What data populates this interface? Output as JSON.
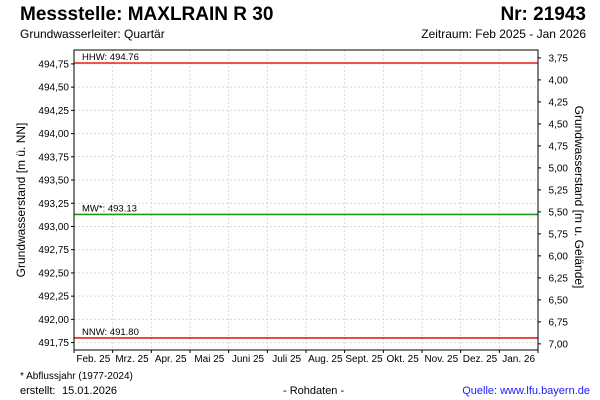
{
  "header": {
    "title": "Messstelle: MAXLRAIN R 30",
    "number": "Nr: 21943",
    "aquifer": "Grundwasserleiter: Quartär",
    "period": "Zeitraum: Feb 2025 - Jan 2026"
  },
  "footer": {
    "footnote": "* Abflussjahr (1977-2024)",
    "created_label": "erstellt:",
    "created_date": "15.01.2026",
    "raw": "- Rohdaten -",
    "source": "Quelle: www.lfu.bayern.de"
  },
  "chart_data": {
    "type": "line",
    "ylabel": "Grundwasserstand [m ü. NN]",
    "ylabel_right": "Grundwasserstand [m u. Gelände]",
    "x_ticks": [
      "Feb. 25",
      "Mrz. 25",
      "Apr. 25",
      "Mai 25",
      "Juni 25",
      "Juli 25",
      "Aug. 25",
      "Sept. 25",
      "Okt. 25",
      "Nov. 25",
      "Dez. 25",
      "Jan. 26"
    ],
    "y_ticks": [
      "494,75",
      "494,50",
      "494,25",
      "494,00",
      "493,75",
      "493,50",
      "493,25",
      "493,00",
      "492,75",
      "492,50",
      "492,25",
      "492,00",
      "491,75"
    ],
    "y_values": [
      494.75,
      494.5,
      494.25,
      494.0,
      493.75,
      493.5,
      493.25,
      493.0,
      492.75,
      492.5,
      492.25,
      492.0,
      491.75
    ],
    "ylim": [
      491.67,
      494.9
    ],
    "y2_ticks": [
      "3,75",
      "4,00",
      "4,25",
      "4,50",
      "4,75",
      "5,00",
      "5,25",
      "5,50",
      "5,75",
      "6,00",
      "6,25",
      "6,50",
      "6,75",
      "7,00"
    ],
    "y2_values": [
      3.75,
      4.0,
      4.25,
      4.5,
      4.75,
      5.0,
      5.25,
      5.5,
      5.75,
      6.0,
      6.25,
      6.5,
      6.75,
      7.0
    ],
    "y2lim": [
      3.66,
      7.07
    ],
    "grid": true,
    "reference_lines": [
      {
        "label": "HHW: 494.76",
        "value": 494.76,
        "color": "#e8201a"
      },
      {
        "label": "MW*: 493.13",
        "value": 493.13,
        "color": "#1a9a1a"
      },
      {
        "label": "NNW: 491.80",
        "value": 491.8,
        "color": "#e8201a"
      }
    ]
  }
}
